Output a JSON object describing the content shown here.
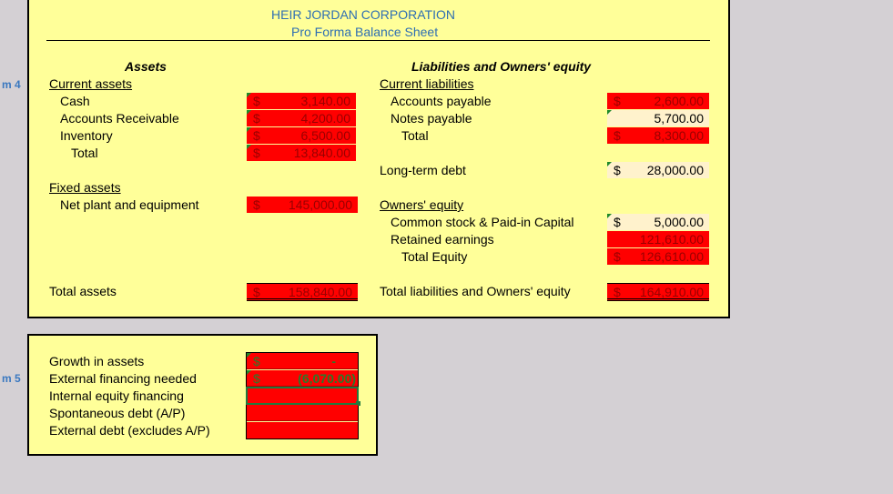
{
  "margin_labels": {
    "m4": "m 4",
    "m5": "m 5"
  },
  "header": {
    "company": "HEIR JORDAN CORPORATION",
    "subtitle": "Pro Forma Balance Sheet"
  },
  "assets": {
    "heading": "Assets",
    "current_label": "Current assets",
    "cash_label": "Cash",
    "ar_label": "Accounts Receivable",
    "inventory_label": "Inventory",
    "total_label": "Total",
    "fixed_label": "Fixed assets",
    "netplant_label": "Net plant and equipment",
    "total_assets_label": "Total assets",
    "currency": "$",
    "cash_value": "3,140.00",
    "ar_value": "4,200.00",
    "inventory_value": "6,500.00",
    "total_value": "13,840.00",
    "netplant_value": "145,000.00",
    "total_assets_value": "158,840.00"
  },
  "liabilities": {
    "heading": "Liabilities and Owners' equity",
    "current_label": "Current liabilities",
    "ap_label": "Accounts payable",
    "np_label": "Notes payable",
    "total_label": "Total",
    "ltd_label": "Long-term debt",
    "oe_label": "Owners' equity",
    "cs_label": "Common stock & Paid-in Capital",
    "re_label": "Retained earnings",
    "te_label": "Total Equity",
    "tloe_label": "Total liabilities and Owners' equity",
    "currency": "$",
    "ap_value": "2,600.00",
    "np_value": "5,700.00",
    "total_value": "8,300.00",
    "ltd_value": "28,000.00",
    "cs_value": "5,000.00",
    "re_value": "121,610.00",
    "te_value": "126,610.00",
    "tloe_value": "164,910.00"
  },
  "growth": {
    "growth_label": "Growth in assets",
    "efn_label": "External financing needed",
    "ief_label": "Internal equity financing",
    "sd_label": "Spontaneous debt (A/P)",
    "ed_label": "External debt (excludes A/P)",
    "currency": "$",
    "growth_value": "-",
    "efn_value": "(6,070.00)"
  }
}
